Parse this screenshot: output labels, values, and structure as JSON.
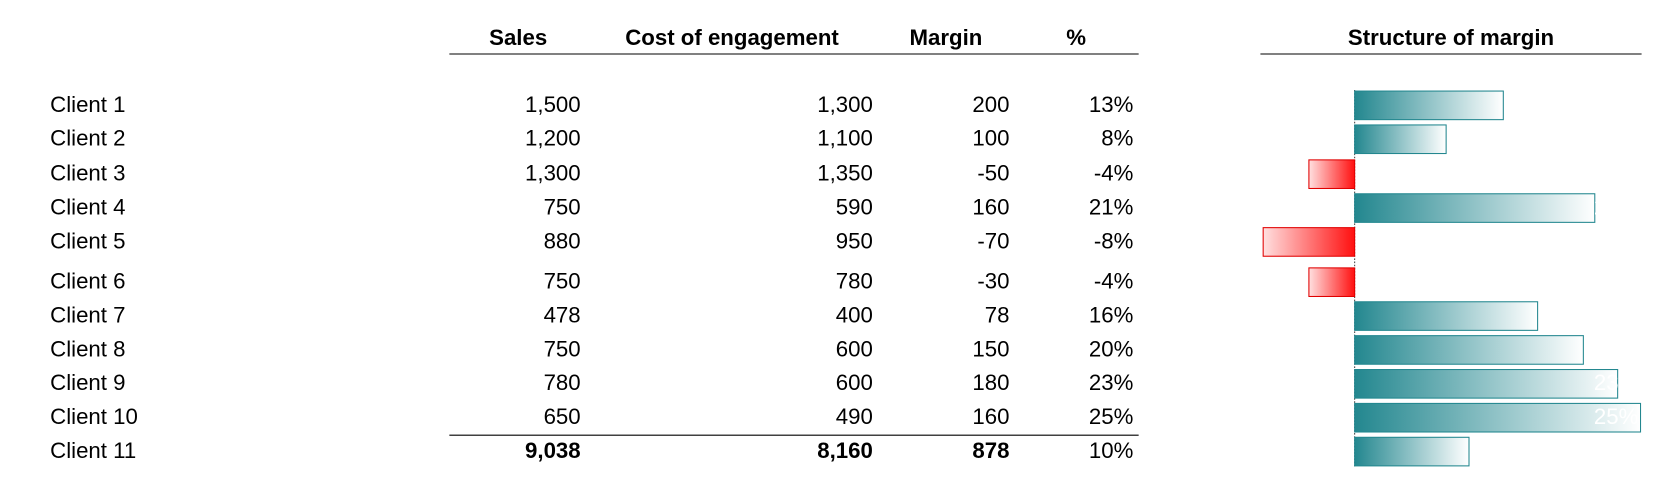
{
  "header": {
    "columns": [
      "Sales",
      "Cost of engagement",
      "Margin",
      "%"
    ],
    "chart_title": "Structure of margin"
  },
  "table": {
    "rows": [
      [
        "Client 1",
        "1,500",
        "1,300",
        "200",
        {
          "value": 13,
          "label": "13%"
        }
      ],
      [
        "Client 2",
        "1,200",
        "1,100",
        "100",
        {
          "value": 8,
          "label": "8%"
        }
      ],
      [
        "Client 3",
        "1,300",
        "1,350",
        "-50",
        {
          "value": -4,
          "label": "-4%"
        }
      ],
      [
        "Client 4",
        "750",
        "590",
        "160",
        {
          "value": 21,
          "label": "21%"
        }
      ],
      [
        "Client 5",
        "880",
        "950",
        "-70",
        {
          "value": -8,
          "label": "-8%"
        }
      ],
      [
        "Client 6",
        "750",
        "780",
        "-30",
        {
          "value": -4,
          "label": "-4%"
        }
      ],
      [
        "Client 7",
        "478",
        "400",
        "78",
        {
          "value": 16,
          "label": "16%"
        }
      ],
      [
        "Client 8",
        "750",
        "600",
        "150",
        {
          "value": 20,
          "label": "20%"
        }
      ],
      [
        "Client 9",
        "780",
        "600",
        "180",
        {
          "value": 23,
          "label": "23%"
        }
      ],
      [
        "Client 10",
        "650",
        "490",
        "160",
        {
          "value": 25,
          "label": "25%"
        }
      ],
      [
        "Client 11",
        "9,038",
        "8,160",
        "878",
        {
          "value": 10,
          "label": "10%"
        }
      ]
    ]
  }
}
